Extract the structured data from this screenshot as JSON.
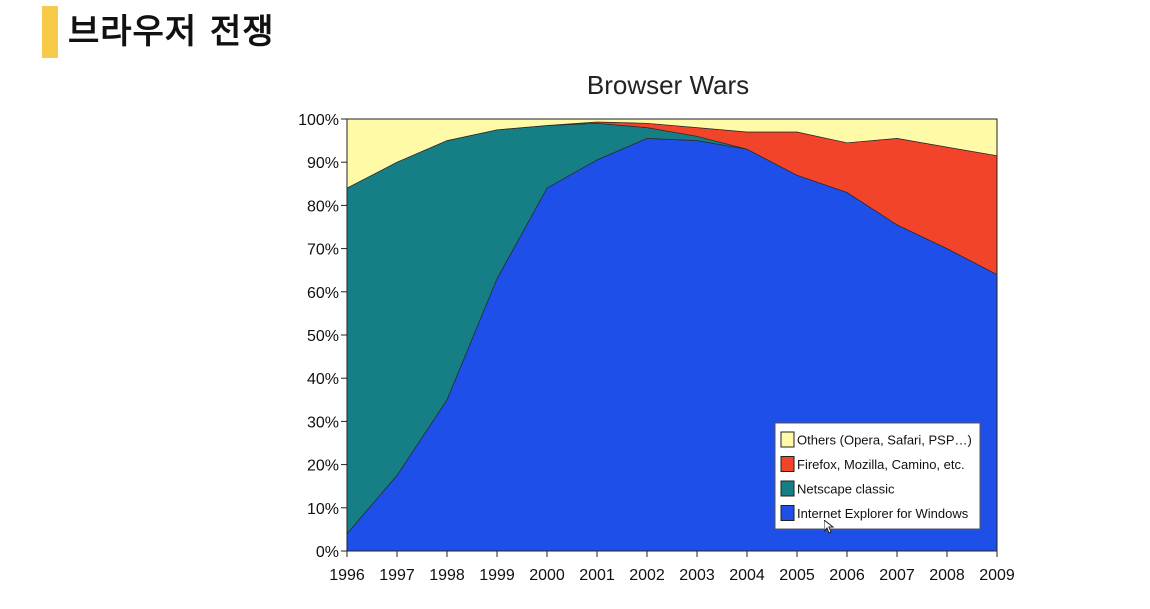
{
  "slide": {
    "title": "브라우저 전쟁",
    "accent_color": "#F7C948"
  },
  "chart_data": {
    "type": "area",
    "stacked": true,
    "title": "Browser Wars",
    "xlabel": "",
    "ylabel": "",
    "x": [
      1996,
      1997,
      1998,
      1999,
      2000,
      2001,
      2002,
      2003,
      2004,
      2005,
      2006,
      2007,
      2008,
      2009
    ],
    "ylim": [
      0,
      100
    ],
    "yticks": [
      "0%",
      "10%",
      "20%",
      "30%",
      "40%",
      "50%",
      "60%",
      "70%",
      "80%",
      "90%",
      "100%"
    ],
    "xticks": [
      "1996",
      "1997",
      "1998",
      "1999",
      "2000",
      "2001",
      "2002",
      "2003",
      "2004",
      "2005",
      "2006",
      "2007",
      "2008",
      "2009"
    ],
    "legend_position": "bottom-right",
    "grid": false,
    "series": [
      {
        "name": "Internet Explorer for Windows",
        "color": "#1E4FE8",
        "values": [
          4,
          17.5,
          35,
          63,
          84,
          90.5,
          95.5,
          95,
          93,
          87,
          83,
          75.5,
          70,
          64
        ]
      },
      {
        "name": "Netscape classic",
        "color": "#157F85",
        "values": [
          80,
          72.5,
          60,
          34.5,
          14.5,
          8.5,
          2.5,
          1,
          0,
          0,
          0,
          0,
          0,
          0
        ]
      },
      {
        "name": "Firefox, Mozilla, Camino, etc.",
        "color": "#F2432B",
        "values": [
          0,
          0,
          0,
          0,
          0,
          0.3,
          1,
          2,
          4,
          10,
          11.5,
          20,
          23.5,
          27.5
        ]
      },
      {
        "name": "Others (Opera, Safari, PSP…)",
        "color": "#FFFAA8",
        "values": [
          16,
          10,
          5,
          2.5,
          1.5,
          0.7,
          1,
          2,
          3,
          3,
          5.5,
          4.5,
          6.5,
          8.5
        ]
      }
    ],
    "legend_order": [
      3,
      2,
      1,
      0
    ]
  }
}
